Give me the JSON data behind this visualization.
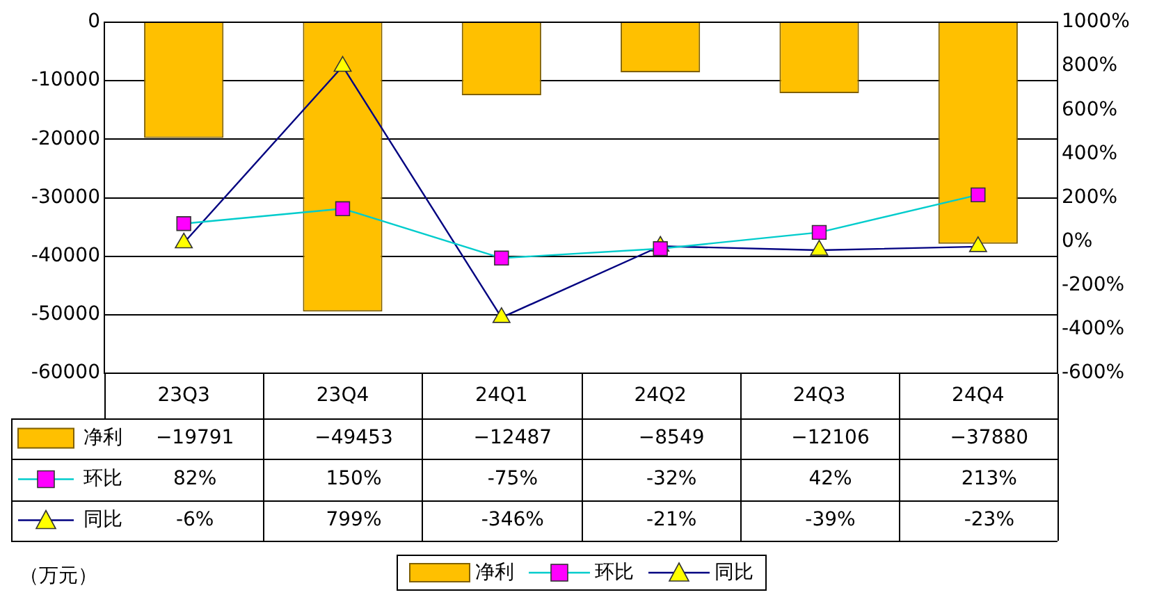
{
  "chart_data": {
    "type": "bar",
    "categories": [
      "23Q3",
      "23Q4",
      "24Q1",
      "24Q2",
      "24Q3",
      "24Q4"
    ],
    "series": [
      {
        "name": "净利",
        "color": "#ffc000",
        "values": [
          -19791,
          -49453,
          -12487,
          -8549,
          -12106,
          -37880
        ],
        "value_labels": [
          "−19791",
          "−49453",
          "−12487",
          "−8549",
          "−12106",
          "−37880"
        ]
      },
      {
        "name": "环比",
        "type": "line",
        "axis": "y2",
        "color": "#00cccc",
        "colors": [
          "#ff00ff",
          "#ff00ff",
          "#ff00ff",
          "#ff00ff",
          "#ff00ff",
          "#ff00ff"
        ],
        "marker": "square",
        "values": [
          82,
          150,
          -75,
          -32,
          42,
          213
        ],
        "value_labels": [
          "82%",
          "150%",
          "-75%",
          "-32%",
          "42%",
          "213%"
        ]
      },
      {
        "name": "同比",
        "type": "line",
        "axis": "y2",
        "color": "#000080",
        "colors": [
          "#ffff00",
          "#ffff00",
          "#ffff00",
          "#ffff00",
          "#ffff00",
          "#ffff00"
        ],
        "marker": "triangle",
        "values": [
          -6,
          799,
          -346,
          -21,
          -39,
          -23
        ],
        "value_labels": [
          "-6%",
          "799%",
          "-346%",
          "-21%",
          "-39%",
          "-23%"
        ]
      }
    ],
    "ylim": [
      -60000,
      0
    ],
    "yticks": [
      -60000,
      -50000,
      -40000,
      -30000,
      -20000,
      -10000,
      0
    ],
    "y2lim": [
      -600,
      1000
    ],
    "y2ticks": [
      {
        "value": -600,
        "label": "-600%"
      },
      {
        "value": -400,
        "label": "-400%"
      },
      {
        "value": -200,
        "label": "-200%"
      },
      {
        "value": 0,
        "label": "0%"
      },
      {
        "value": 200,
        "label": "200%"
      },
      {
        "value": 400,
        "label": "400%"
      },
      {
        "value": 600,
        "label": "600%"
      },
      {
        "value": 800,
        "label": "800%"
      },
      {
        "value": 1000,
        "label": "1000%"
      }
    ],
    "grid": "y",
    "legend": "bottom",
    "annotations": [
      "（万元）"
    ]
  }
}
